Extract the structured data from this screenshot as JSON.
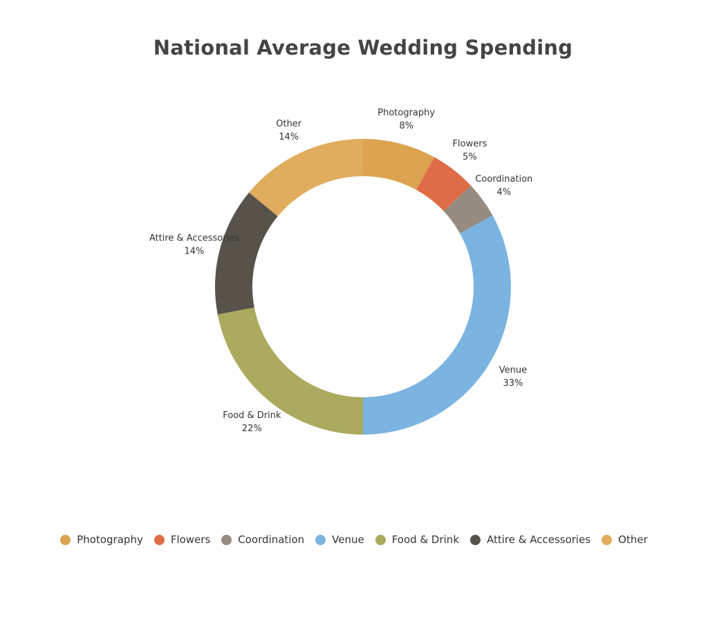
{
  "chart_data": {
    "type": "pie",
    "variant": "donut",
    "title": "National Average Wedding Spending",
    "unit": "%",
    "categories": [
      "Photography",
      "Flowers",
      "Coordination",
      "Venue",
      "Food & Drink",
      "Attire & Accessories",
      "Other"
    ],
    "values": [
      8,
      5,
      4,
      33,
      22,
      14,
      14
    ],
    "labels": [
      "8%",
      "5%",
      "4%",
      "33%",
      "22%",
      "14%",
      "14%"
    ],
    "colors": [
      "#DCA350",
      "#DE6C46",
      "#968C82",
      "#7BB4E0",
      "#ABAA5E",
      "#57534B",
      "#E0AC5E"
    ],
    "legend_position": "bottom",
    "start_angle": "12 o'clock, clockwise"
  }
}
